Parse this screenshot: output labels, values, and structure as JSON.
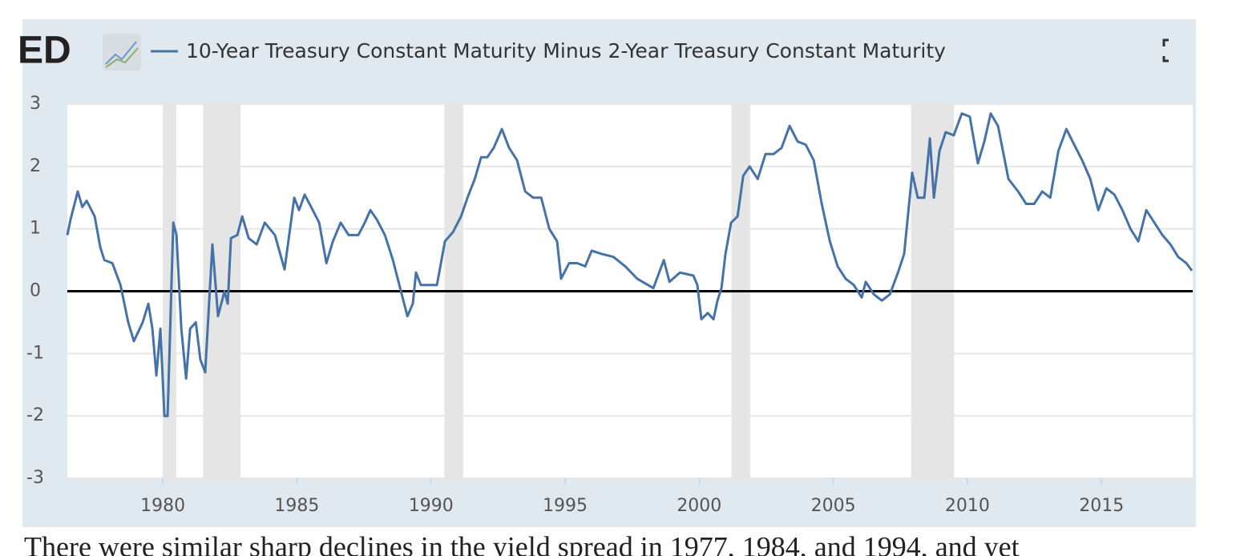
{
  "chart_data": {
    "type": "line",
    "logo": "ED",
    "title": "10-Year Treasury Constant Maturity Minus 2-Year Treasury Constant Maturity",
    "caption": "There were similar sharp declines in the yield spread in 1977, 1984, and 1994, and yet",
    "x": [
      1976.44,
      1976.56,
      1976.83,
      1977.0,
      1977.16,
      1977.46,
      1977.67,
      1977.82,
      1978.12,
      1978.42,
      1978.71,
      1978.92,
      1979.25,
      1979.46,
      1979.61,
      1979.76,
      1979.91,
      1980.06,
      1980.18,
      1980.39,
      1980.51,
      1980.69,
      1980.87,
      1981.02,
      1981.23,
      1981.4,
      1981.58,
      1981.85,
      1982.06,
      1982.3,
      1982.42,
      1982.54,
      1982.78,
      1982.96,
      1983.2,
      1983.5,
      1983.8,
      1984.18,
      1984.54,
      1984.9,
      1985.08,
      1985.29,
      1985.59,
      1985.83,
      1986.1,
      1986.34,
      1986.63,
      1986.93,
      1987.29,
      1987.53,
      1987.74,
      1987.98,
      1988.28,
      1988.58,
      1988.88,
      1989.12,
      1989.32,
      1989.44,
      1989.62,
      1989.92,
      1990.22,
      1990.52,
      1990.82,
      1991.12,
      1991.36,
      1991.63,
      1991.87,
      1992.1,
      1992.34,
      1992.64,
      1992.91,
      1993.21,
      1993.51,
      1993.81,
      1994.11,
      1994.41,
      1994.7,
      1994.85,
      1995.15,
      1995.45,
      1995.75,
      1995.99,
      1996.35,
      1996.8,
      1997.24,
      1997.69,
      1998.29,
      1998.68,
      1998.89,
      1999.28,
      1999.78,
      1999.93,
      2000.08,
      2000.32,
      2000.53,
      2000.68,
      2000.83,
      2000.98,
      2001.19,
      2001.43,
      2001.64,
      2001.88,
      2002.18,
      2002.47,
      2002.77,
      2003.07,
      2003.37,
      2003.67,
      2003.97,
      2004.27,
      2004.57,
      2004.87,
      2005.16,
      2005.46,
      2005.76,
      2006.06,
      2006.21,
      2006.51,
      2006.81,
      2007.11,
      2007.41,
      2007.64,
      2007.94,
      2008.15,
      2008.39,
      2008.6,
      2008.75,
      2008.96,
      2009.19,
      2009.49,
      2009.79,
      2010.09,
      2010.39,
      2010.63,
      2010.87,
      2011.14,
      2011.53,
      2011.89,
      2012.19,
      2012.49,
      2012.79,
      2013.09,
      2013.39,
      2013.69,
      2013.98,
      2014.28,
      2014.58,
      2014.88,
      2015.18,
      2015.48,
      2015.78,
      2016.08,
      2016.37,
      2016.67,
      2016.97,
      2017.27,
      2017.57,
      2017.86,
      2018.16,
      2018.37
    ],
    "series": [
      {
        "name": "10-Year Treasury Constant Maturity Minus 2-Year Treasury Constant Maturity",
        "color": "#4572a7",
        "values": [
          0.9,
          1.15,
          1.6,
          1.35,
          1.45,
          1.2,
          0.7,
          0.5,
          0.45,
          0.1,
          -0.5,
          -0.8,
          -0.5,
          -0.2,
          -0.6,
          -1.35,
          -0.6,
          -2.0,
          -2.0,
          1.1,
          0.9,
          -0.6,
          -1.4,
          -0.6,
          -0.5,
          -1.1,
          -1.3,
          0.75,
          -0.4,
          0.0,
          -0.2,
          0.85,
          0.9,
          1.2,
          0.85,
          0.75,
          1.1,
          0.9,
          0.35,
          1.5,
          1.3,
          1.55,
          1.3,
          1.1,
          0.45,
          0.8,
          1.1,
          0.9,
          0.9,
          1.1,
          1.3,
          1.15,
          0.9,
          0.5,
          0.0,
          -0.4,
          -0.2,
          0.3,
          0.1,
          0.1,
          0.1,
          0.8,
          0.95,
          1.2,
          1.5,
          1.8,
          2.15,
          2.15,
          2.3,
          2.6,
          2.3,
          2.1,
          1.6,
          1.5,
          1.5,
          1.0,
          0.8,
          0.2,
          0.45,
          0.45,
          0.4,
          0.65,
          0.6,
          0.55,
          0.4,
          0.2,
          0.05,
          0.5,
          0.15,
          0.3,
          0.25,
          0.1,
          -0.45,
          -0.35,
          -0.45,
          -0.15,
          0.05,
          0.6,
          1.1,
          1.2,
          1.85,
          2.0,
          1.8,
          2.2,
          2.2,
          2.3,
          2.65,
          2.4,
          2.35,
          2.1,
          1.4,
          0.8,
          0.4,
          0.2,
          0.1,
          -0.1,
          0.15,
          -0.05,
          -0.15,
          -0.05,
          0.3,
          0.6,
          1.9,
          1.5,
          1.5,
          2.45,
          1.5,
          2.25,
          2.55,
          2.5,
          2.85,
          2.8,
          2.05,
          2.4,
          2.85,
          2.65,
          1.8,
          1.6,
          1.4,
          1.4,
          1.6,
          1.5,
          2.25,
          2.6,
          2.35,
          2.1,
          1.8,
          1.3,
          1.65,
          1.55,
          1.3,
          1.0,
          0.8,
          1.3,
          1.1,
          0.9,
          0.75,
          0.55,
          0.45,
          0.33
        ]
      }
    ],
    "recessions": [
      [
        1980.0,
        1980.5
      ],
      [
        1981.5,
        1982.9
      ],
      [
        1990.5,
        1991.2
      ],
      [
        2001.2,
        2001.9
      ],
      [
        2007.9,
        2009.5
      ]
    ],
    "hline": 0,
    "xlim": [
      1976.44,
      2018.4
    ],
    "xticks": [
      1980,
      1985,
      1990,
      1995,
      2000,
      2005,
      2010,
      2015
    ],
    "ylim": [
      -3,
      3
    ],
    "yticks": [
      -3,
      -2,
      -1,
      0,
      1,
      2,
      3
    ],
    "grid": true
  }
}
